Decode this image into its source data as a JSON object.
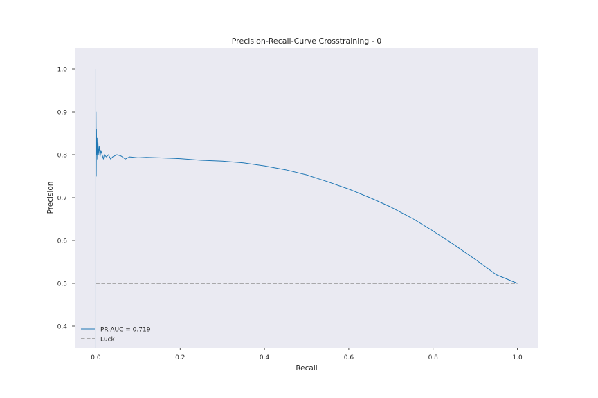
{
  "chart_data": {
    "type": "line",
    "title": "Precision-Recall-Curve Crosstraining  - 0",
    "xlabel": "Recall",
    "ylabel": "Precision",
    "xlim": [
      -0.05,
      1.05
    ],
    "ylim": [
      0.35,
      1.05
    ],
    "xticks": [
      0.0,
      0.2,
      0.4,
      0.6,
      0.8,
      1.0
    ],
    "xtick_labels": [
      "0.0",
      "0.2",
      "0.4",
      "0.6",
      "0.8",
      "1.0"
    ],
    "yticks": [
      0.4,
      0.5,
      0.6,
      0.7,
      0.8,
      0.9,
      1.0
    ],
    "ytick_labels": [
      "0.4",
      "0.5",
      "0.6",
      "0.7",
      "0.8",
      "0.9",
      "1.0"
    ],
    "grid": false,
    "legend_position": "lower-left",
    "series": [
      {
        "name": "PR-AUC = 0.719",
        "color": "#1f77b4",
        "style": "solid",
        "x": [
          0.0,
          0.0,
          0.0,
          0.0005,
          0.001,
          0.0015,
          0.002,
          0.003,
          0.004,
          0.005,
          0.006,
          0.008,
          0.01,
          0.012,
          0.015,
          0.018,
          0.02,
          0.025,
          0.03,
          0.035,
          0.04,
          0.05,
          0.06,
          0.07,
          0.08,
          0.1,
          0.12,
          0.15,
          0.2,
          0.25,
          0.3,
          0.35,
          0.4,
          0.45,
          0.5,
          0.55,
          0.6,
          0.65,
          0.7,
          0.75,
          0.8,
          0.85,
          0.9,
          0.95,
          1.0
        ],
        "y": [
          0.35,
          1.0,
          0.78,
          0.9,
          0.75,
          0.86,
          0.8,
          0.84,
          0.79,
          0.83,
          0.8,
          0.82,
          0.795,
          0.81,
          0.8,
          0.79,
          0.8,
          0.795,
          0.8,
          0.79,
          0.795,
          0.8,
          0.797,
          0.79,
          0.795,
          0.793,
          0.794,
          0.793,
          0.791,
          0.787,
          0.785,
          0.781,
          0.774,
          0.765,
          0.753,
          0.737,
          0.72,
          0.7,
          0.678,
          0.652,
          0.622,
          0.59,
          0.556,
          0.52,
          0.5
        ]
      },
      {
        "name": "Luck",
        "color": "#929292",
        "style": "dashed",
        "x": [
          0.0,
          1.0
        ],
        "y": [
          0.5,
          0.5
        ]
      }
    ]
  }
}
